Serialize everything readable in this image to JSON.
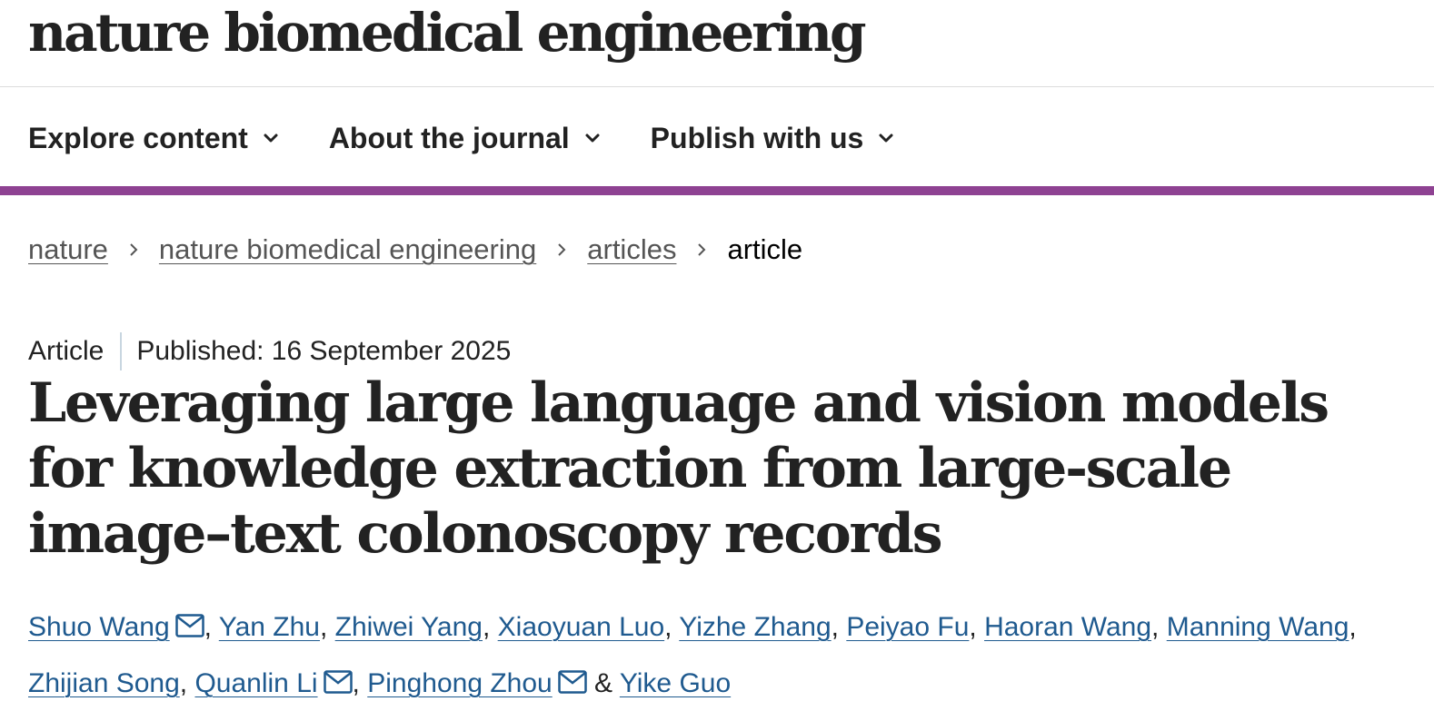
{
  "header": {
    "journal_name": "nature biomedical engineering"
  },
  "nav": {
    "items": [
      {
        "label": "Explore content"
      },
      {
        "label": "About the journal"
      },
      {
        "label": "Publish with us"
      }
    ]
  },
  "accent_color": "#8e4292",
  "breadcrumb": {
    "items": [
      "nature",
      "nature biomedical engineering",
      "articles"
    ],
    "current": "article"
  },
  "article": {
    "type": "Article",
    "published": "Published: 16 September 2025",
    "title": "Leveraging large language and vision models for knowledge extraction from large-scale image–text colonoscopy records",
    "authors": [
      {
        "name": "Shuo Wang",
        "mail_icon": true,
        "after": ", "
      },
      {
        "name": "Yan Zhu",
        "mail_icon": false,
        "after": ", "
      },
      {
        "name": "Zhiwei Yang",
        "mail_icon": false,
        "after": ", "
      },
      {
        "name": "Xiaoyuan Luo",
        "mail_icon": false,
        "after": ", "
      },
      {
        "name": "Yizhe Zhang",
        "mail_icon": false,
        "after": ", "
      },
      {
        "name": "Peiyao Fu",
        "mail_icon": false,
        "after": ", "
      },
      {
        "name": "Haoran Wang",
        "mail_icon": false,
        "after": ", "
      },
      {
        "name": "Manning Wang",
        "mail_icon": false,
        "after": ", "
      },
      {
        "name": "Zhijian Song",
        "mail_icon": false,
        "after": ", "
      },
      {
        "name": "Quanlin Li",
        "mail_icon": true,
        "after": ", "
      },
      {
        "name": "Pinghong Zhou",
        "mail_icon": true,
        "after": " & "
      },
      {
        "name": "Yike Guo",
        "mail_icon": false,
        "after": ""
      }
    ],
    "link_color": "#1f5a8f"
  },
  "icons": {
    "nav_chevron": "chevron-down-icon",
    "breadcrumb_separator": "chevron-right-icon",
    "author_contact": "envelope-icon"
  }
}
